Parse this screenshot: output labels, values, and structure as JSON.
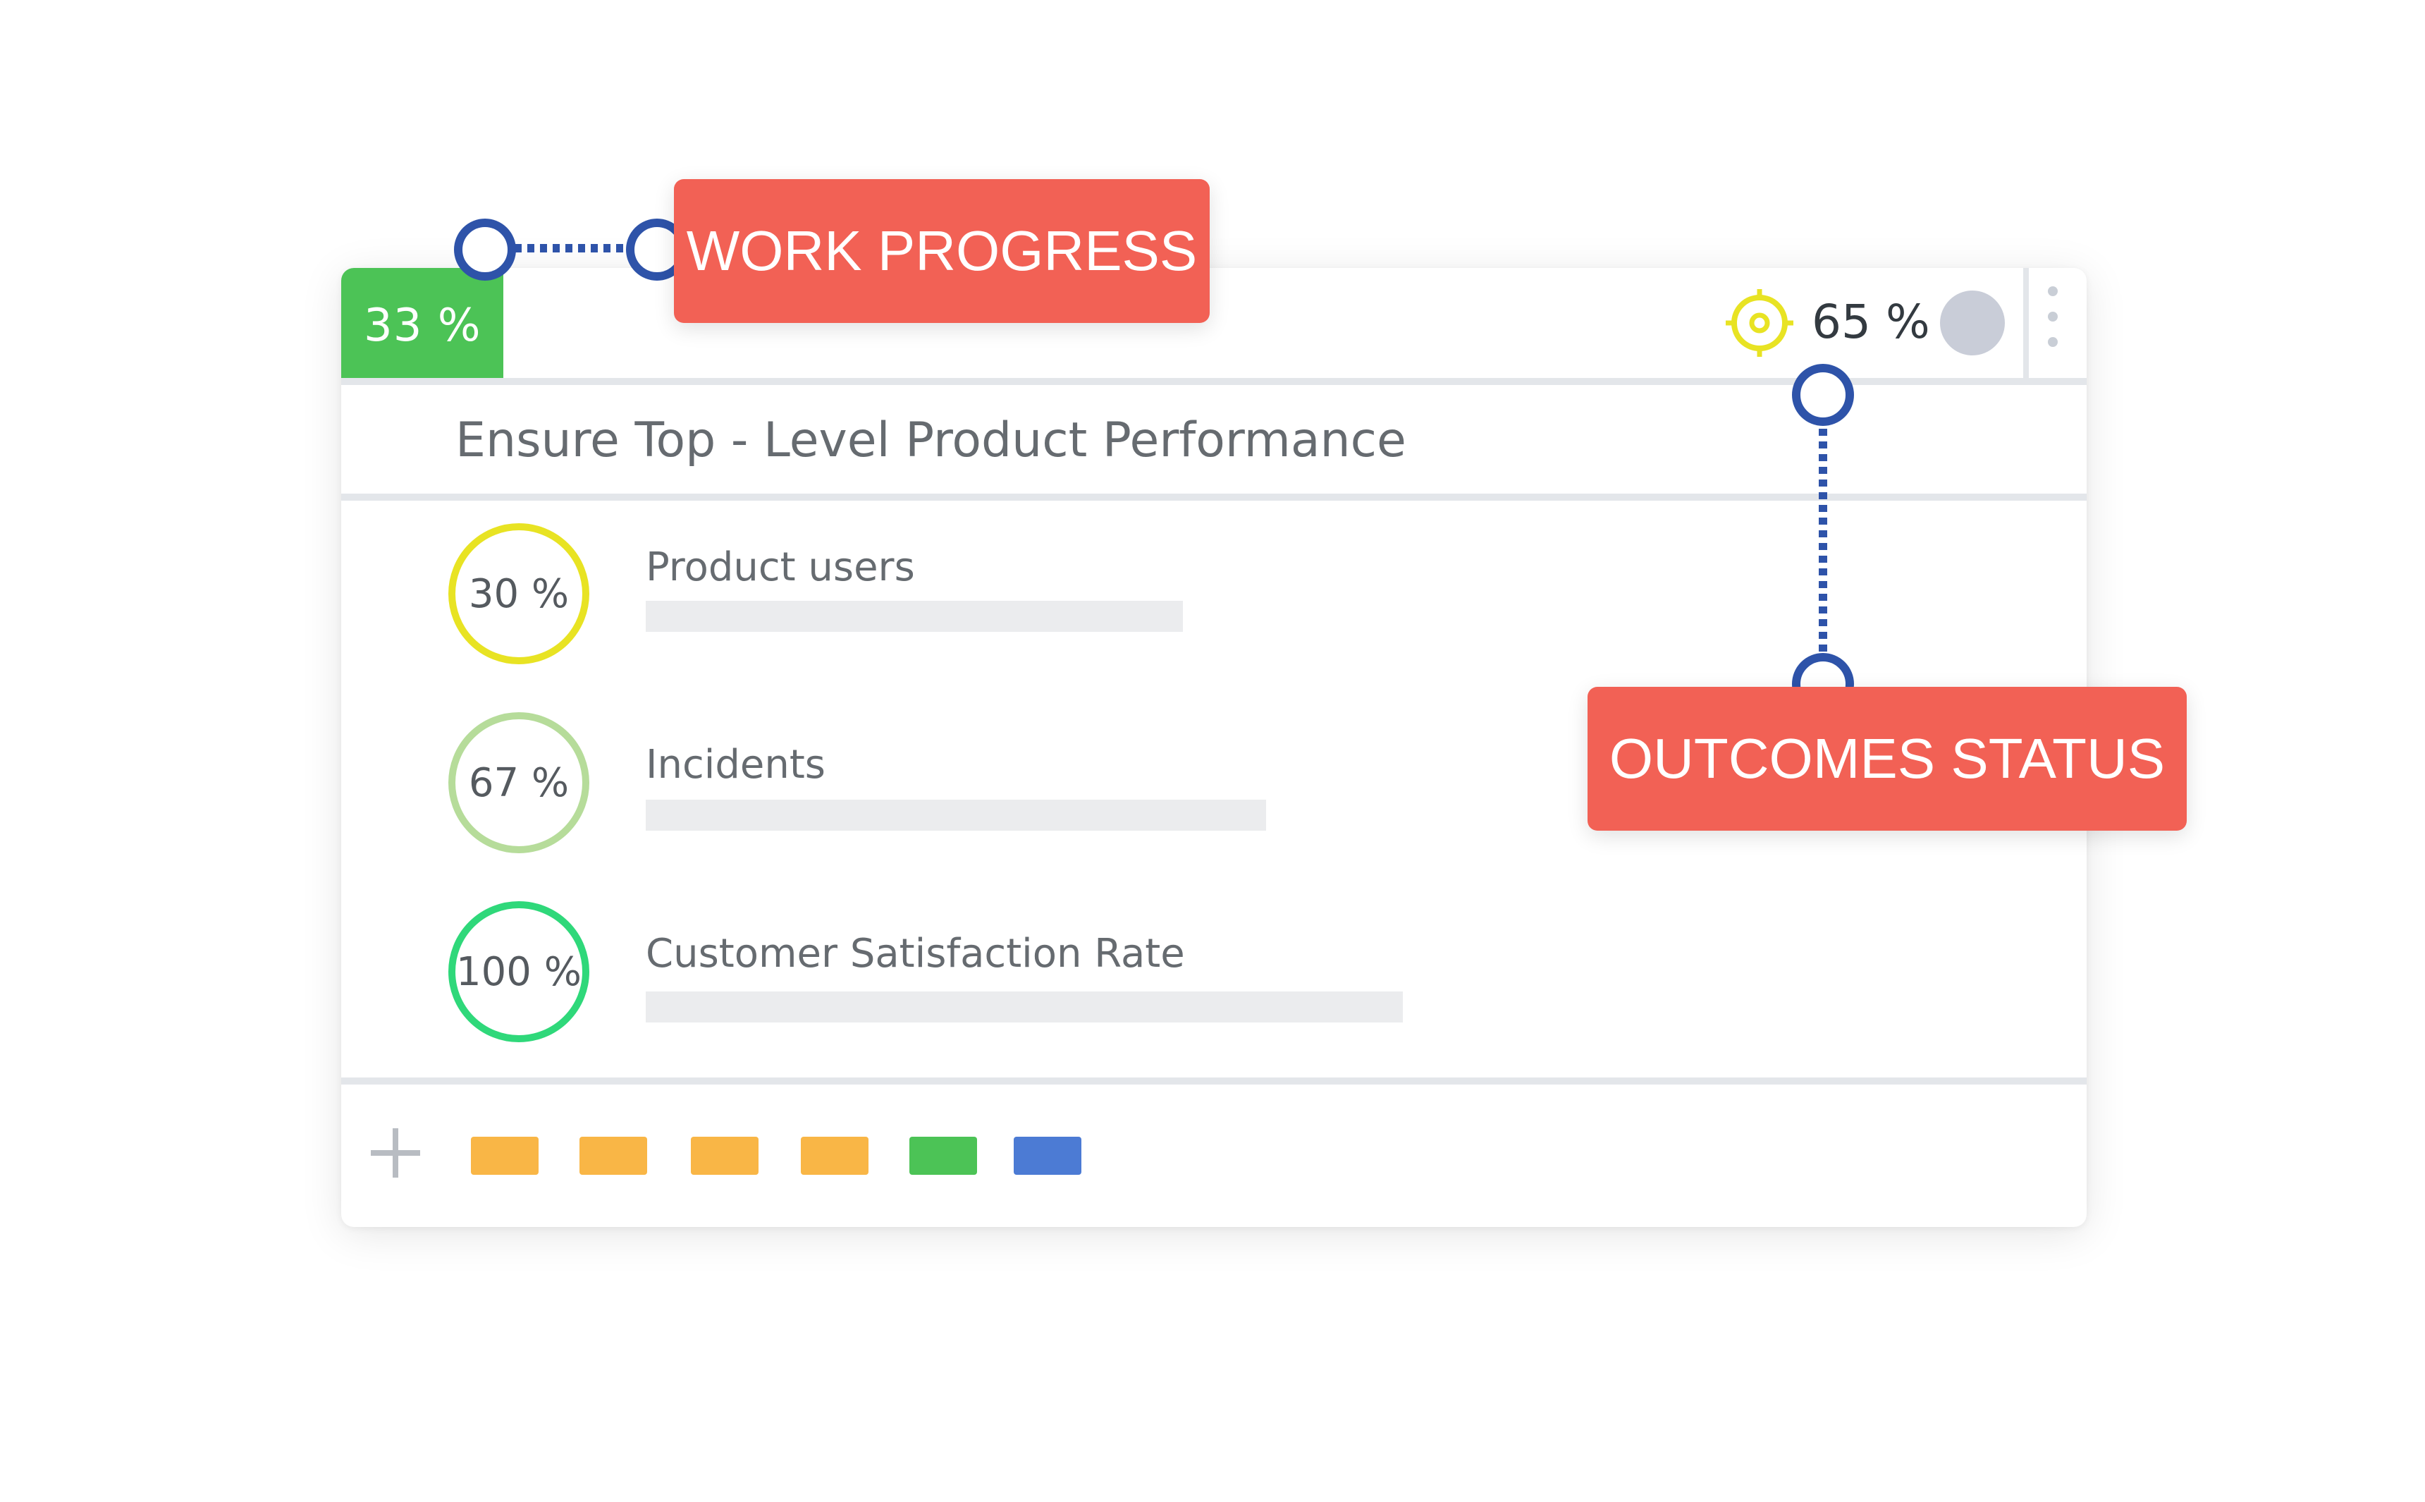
{
  "work_progress": {
    "percent": "33 %",
    "color": "#4cc356"
  },
  "outcome_status": {
    "percent": "65 %",
    "icon": "target-icon",
    "icon_color": "#e8e323"
  },
  "objective": {
    "title": "Ensure Top - Level Product Performance"
  },
  "key_results": [
    {
      "percent": "30 %",
      "label": "Product users",
      "ring_color": "#e8e323"
    },
    {
      "percent": "67 %",
      "label": "Incidents",
      "ring_color": "#b6dc9a"
    },
    {
      "percent": "100 %",
      "label": "Customer Satisfaction Rate",
      "ring_color": "#2fd87a"
    }
  ],
  "footer": {
    "add_icon": "plus-icon",
    "tags": [
      {
        "color": "#f9b646"
      },
      {
        "color": "#f9b646"
      },
      {
        "color": "#f9b646"
      },
      {
        "color": "#f9b646"
      },
      {
        "color": "#4cc356"
      },
      {
        "color": "#4c7bd4"
      }
    ]
  },
  "callouts": {
    "work_progress": "WORK PROGRESS",
    "outcomes_status": "OUTCOMES STATUS",
    "color": "#f26155",
    "connector_color": "#2e53a9"
  }
}
